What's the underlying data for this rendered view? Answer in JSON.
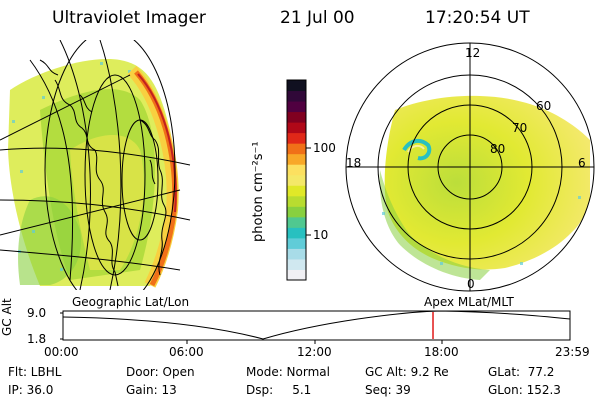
{
  "header": {
    "instrument": "Ultraviolet Imager",
    "date": "21 Jul 00",
    "time": "17:20:54 UT"
  },
  "colorbar": {
    "unit_label": "photon cm⁻²s⁻¹",
    "tick_100": "100",
    "tick_10": "10",
    "colors": [
      "#f0f0f4",
      "#d0e8f0",
      "#a8dce8",
      "#60ccd8",
      "#28c0c0",
      "#50c890",
      "#88d040",
      "#b8dc30",
      "#e0e828",
      "#f4e868",
      "#fce060",
      "#f8a828",
      "#f07018",
      "#e02818",
      "#b00818",
      "#800020",
      "#500040",
      "#300838",
      "#101020"
    ]
  },
  "geo_panel": {
    "label": "Geographic Lat/Lon"
  },
  "polar_panel": {
    "label": "Apex MLat/MLT",
    "mlt_top": "12",
    "mlt_left": "18",
    "mlt_right": "6",
    "mlt_bottom": "0",
    "lat_60": "60",
    "lat_70": "70",
    "lat_80": "80"
  },
  "timeline": {
    "axis_label": "GC Alt",
    "y_top": "9.0",
    "y_bottom": "1.8",
    "ticks": [
      "00:00",
      "06:00",
      "12:00",
      "18:00",
      "23:59"
    ],
    "current_time_fraction": 0.7298
  },
  "status": {
    "flt": "Flt: LBHL",
    "ip": "IP: 36.0",
    "door": "Door: Open",
    "gain": "Gain: 13",
    "mode": "Mode: Normal",
    "dsp": "Dsp:     5.1",
    "gc_alt": "GC Alt: 9.2 Re",
    "seq": "Seq: 39",
    "glat": "GLat:  77.2",
    "glon": "GLon: 152.3"
  }
}
